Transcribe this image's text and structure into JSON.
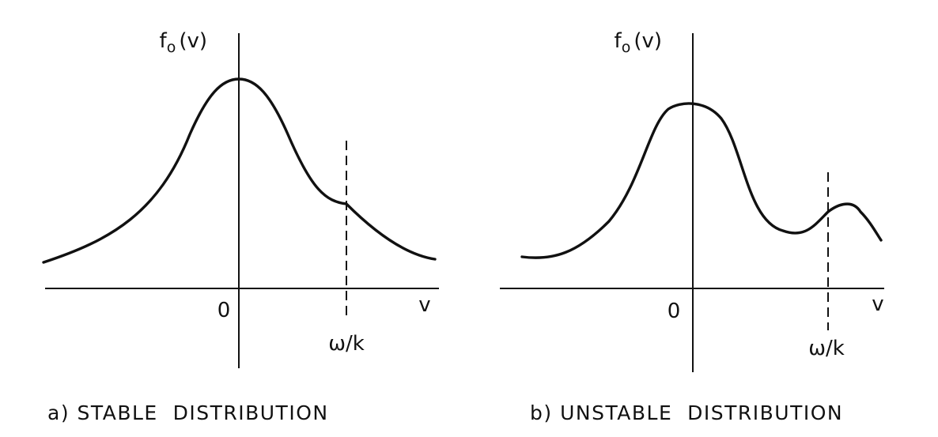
{
  "panel_a": {
    "y_label": "f",
    "y_label_sub": "o",
    "y_label_arg": "(v)",
    "origin_label": "0",
    "x_label": "v",
    "marker_label": "ω/k",
    "caption": "a) STABLE  DISTRIBUTION"
  },
  "panel_b": {
    "y_label": "f",
    "y_label_sub": "o",
    "y_label_arg": "(v)",
    "origin_label": "0",
    "x_label": "v",
    "marker_label": "ω/k",
    "caption": "b) UNSTABLE  DISTRIBUTION"
  },
  "colors": {
    "ink": "#111111",
    "background": "#ffffff"
  }
}
